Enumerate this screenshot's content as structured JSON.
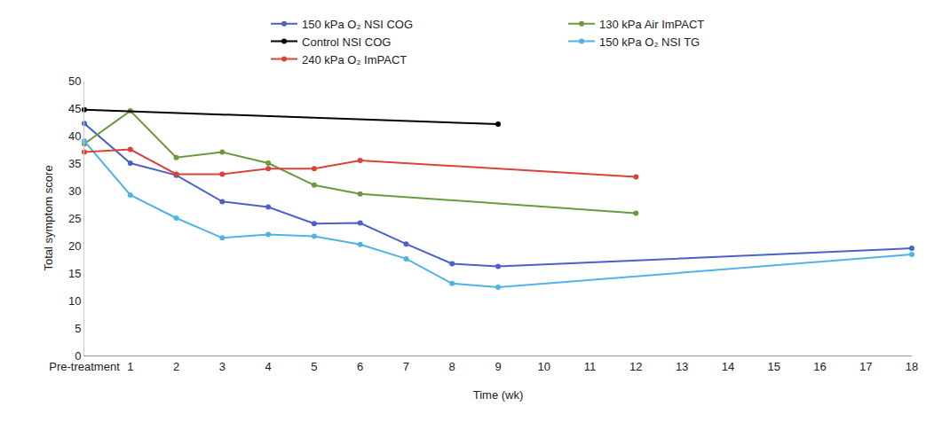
{
  "chart_data": {
    "type": "line",
    "x_label": "Time (wk)",
    "y_label": "Total symptom score",
    "xlim": [
      0,
      18
    ],
    "xticks": [
      {
        "value": 0,
        "label": "Pre-treatment"
      },
      1,
      2,
      3,
      4,
      5,
      6,
      7,
      8,
      9,
      10,
      11,
      12,
      13,
      14,
      15,
      16,
      17,
      18
    ],
    "ylim": [
      0,
      50
    ],
    "yticks": [
      0,
      5,
      10,
      15,
      20,
      25,
      30,
      35,
      40,
      45,
      50
    ],
    "grid": false,
    "legend": "top",
    "marker": "circle",
    "series": [
      {
        "name": "150 kPa O₂ NSI COG",
        "color": "#4a62c8",
        "x": [
          0,
          1,
          2,
          3,
          4,
          5,
          6,
          7,
          8,
          9,
          18
        ],
        "values": [
          42.2,
          35,
          32.8,
          28,
          27,
          24,
          24.1,
          20.3,
          16.7,
          16.2,
          19.5
        ]
      },
      {
        "name": "130 kPa Air ImPACT",
        "color": "#6b9a3c",
        "x": [
          0,
          1,
          2,
          3,
          4,
          5,
          6,
          12
        ],
        "values": [
          38.5,
          44.5,
          36,
          37,
          35,
          31,
          29.4,
          25.9
        ]
      },
      {
        "name": "Control NSI COG",
        "color": "#000000",
        "x": [
          0,
          9
        ],
        "values": [
          44.7,
          42.1
        ]
      },
      {
        "name": "150 kPa O₂ NSI TG",
        "color": "#4fb3e6",
        "x": [
          0,
          1,
          2,
          3,
          4,
          5,
          6,
          7,
          8,
          9,
          18
        ],
        "values": [
          39,
          29.2,
          25,
          21.4,
          22,
          21.7,
          20.2,
          17.6,
          13.1,
          12.4,
          18.4
        ]
      },
      {
        "name": "240 kPa O₂ ImPACT",
        "color": "#d9433a",
        "x": [
          0,
          1,
          2,
          3,
          4,
          5,
          6,
          12
        ],
        "values": [
          37,
          37.5,
          33,
          33,
          34,
          34,
          35.5,
          32.5
        ]
      }
    ]
  }
}
